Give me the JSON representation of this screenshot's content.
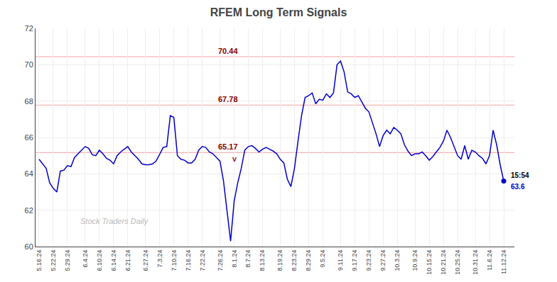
{
  "chart_data": {
    "type": "line",
    "title": "RFEM Long Term Signals",
    "categories": [
      "5.16.24",
      null,
      null,
      null,
      "5.22.24",
      null,
      null,
      null,
      "5.29.24",
      null,
      null,
      null,
      null,
      "6.4.24",
      null,
      null,
      null,
      "6.10.24",
      null,
      null,
      null,
      "6.14.24",
      null,
      null,
      null,
      "6.21.24",
      null,
      null,
      null,
      null,
      "6.27.24",
      null,
      null,
      null,
      "7.3.24",
      null,
      null,
      null,
      "7.10.24",
      null,
      null,
      null,
      "7.16.24",
      null,
      null,
      null,
      "7.22.24",
      null,
      null,
      null,
      null,
      "7.26.24",
      null,
      null,
      null,
      "8.1.24",
      null,
      null,
      null,
      "8.7.24",
      null,
      null,
      null,
      "8.13.24",
      null,
      null,
      null,
      null,
      "8.19.24",
      null,
      null,
      null,
      "8.23.24",
      null,
      null,
      null,
      "8.29.24",
      null,
      null,
      null,
      "9.5.24",
      null,
      null,
      null,
      null,
      "9.11.24",
      null,
      null,
      null,
      "9.17.24",
      null,
      null,
      null,
      "9.23.24",
      null,
      null,
      null,
      "9.27.24",
      null,
      null,
      null,
      "10.3.24",
      null,
      null,
      null,
      null,
      "10.9.24",
      null,
      null,
      null,
      "10.15.24",
      null,
      null,
      null,
      "10.21.24",
      null,
      null,
      null,
      "10.25.24",
      null,
      null,
      null,
      null,
      "10.31.24",
      null,
      null,
      null,
      "11.6.24",
      null,
      null,
      null,
      "11.12.24"
    ],
    "values": [
      64.8,
      64.55,
      64.3,
      63.5,
      63.2,
      63.0,
      64.15,
      64.2,
      64.45,
      64.4,
      64.9,
      65.1,
      65.3,
      65.5,
      65.4,
      65.05,
      65.0,
      65.3,
      65.1,
      64.85,
      64.75,
      64.55,
      65.0,
      65.2,
      65.35,
      65.5,
      65.2,
      65.0,
      64.8,
      64.55,
      64.5,
      64.5,
      64.55,
      64.7,
      65.1,
      65.45,
      65.5,
      67.2,
      67.1,
      65.0,
      64.8,
      64.75,
      64.6,
      64.6,
      64.8,
      65.3,
      65.5,
      65.45,
      65.2,
      65.1,
      64.9,
      64.7,
      63.6,
      62.0,
      60.3,
      62.5,
      63.5,
      64.3,
      65.3,
      65.5,
      65.55,
      65.4,
      65.2,
      65.35,
      65.45,
      65.35,
      65.25,
      65.1,
      64.8,
      64.6,
      63.7,
      63.3,
      64.3,
      65.8,
      67.2,
      68.2,
      68.3,
      68.45,
      67.85,
      68.1,
      68.05,
      68.4,
      68.2,
      68.45,
      70.0,
      70.2,
      69.6,
      68.5,
      68.4,
      68.2,
      68.3,
      67.95,
      67.6,
      67.4,
      66.8,
      66.2,
      65.5,
      66.1,
      66.4,
      66.2,
      66.55,
      66.4,
      66.2,
      65.6,
      65.25,
      65.0,
      65.1,
      65.1,
      65.2,
      65.0,
      64.75,
      64.95,
      65.2,
      65.45,
      65.8,
      66.4,
      66.0,
      65.5,
      65.0,
      64.8,
      65.55,
      64.8,
      65.3,
      65.2,
      65.0,
      64.85,
      64.55,
      65.0,
      66.4,
      65.6,
      64.5,
      63.6
    ],
    "color": "#0000cc",
    "hlines": [
      {
        "y": 70.44,
        "label": "70.44",
        "color": "#f4a0a0",
        "label_color": "#8b0000"
      },
      {
        "y": 67.78,
        "label": "67.78",
        "color": "#f4a0a0",
        "label_color": "#8b0000"
      },
      {
        "y": 65.17,
        "label": "65.17",
        "color": "#f4a0a0",
        "label_color": "#8b0000"
      }
    ],
    "annotations": [
      {
        "text": "V",
        "color": "#8b0000"
      },
      {
        "text": "15:54",
        "color": "#000000"
      },
      {
        "text": "Stock Traders Daily",
        "color": "#aaaaaa"
      }
    ],
    "ylim": [
      60,
      72
    ],
    "yticks": [
      60,
      62,
      64,
      66,
      68,
      70,
      72
    ],
    "grid": true
  }
}
